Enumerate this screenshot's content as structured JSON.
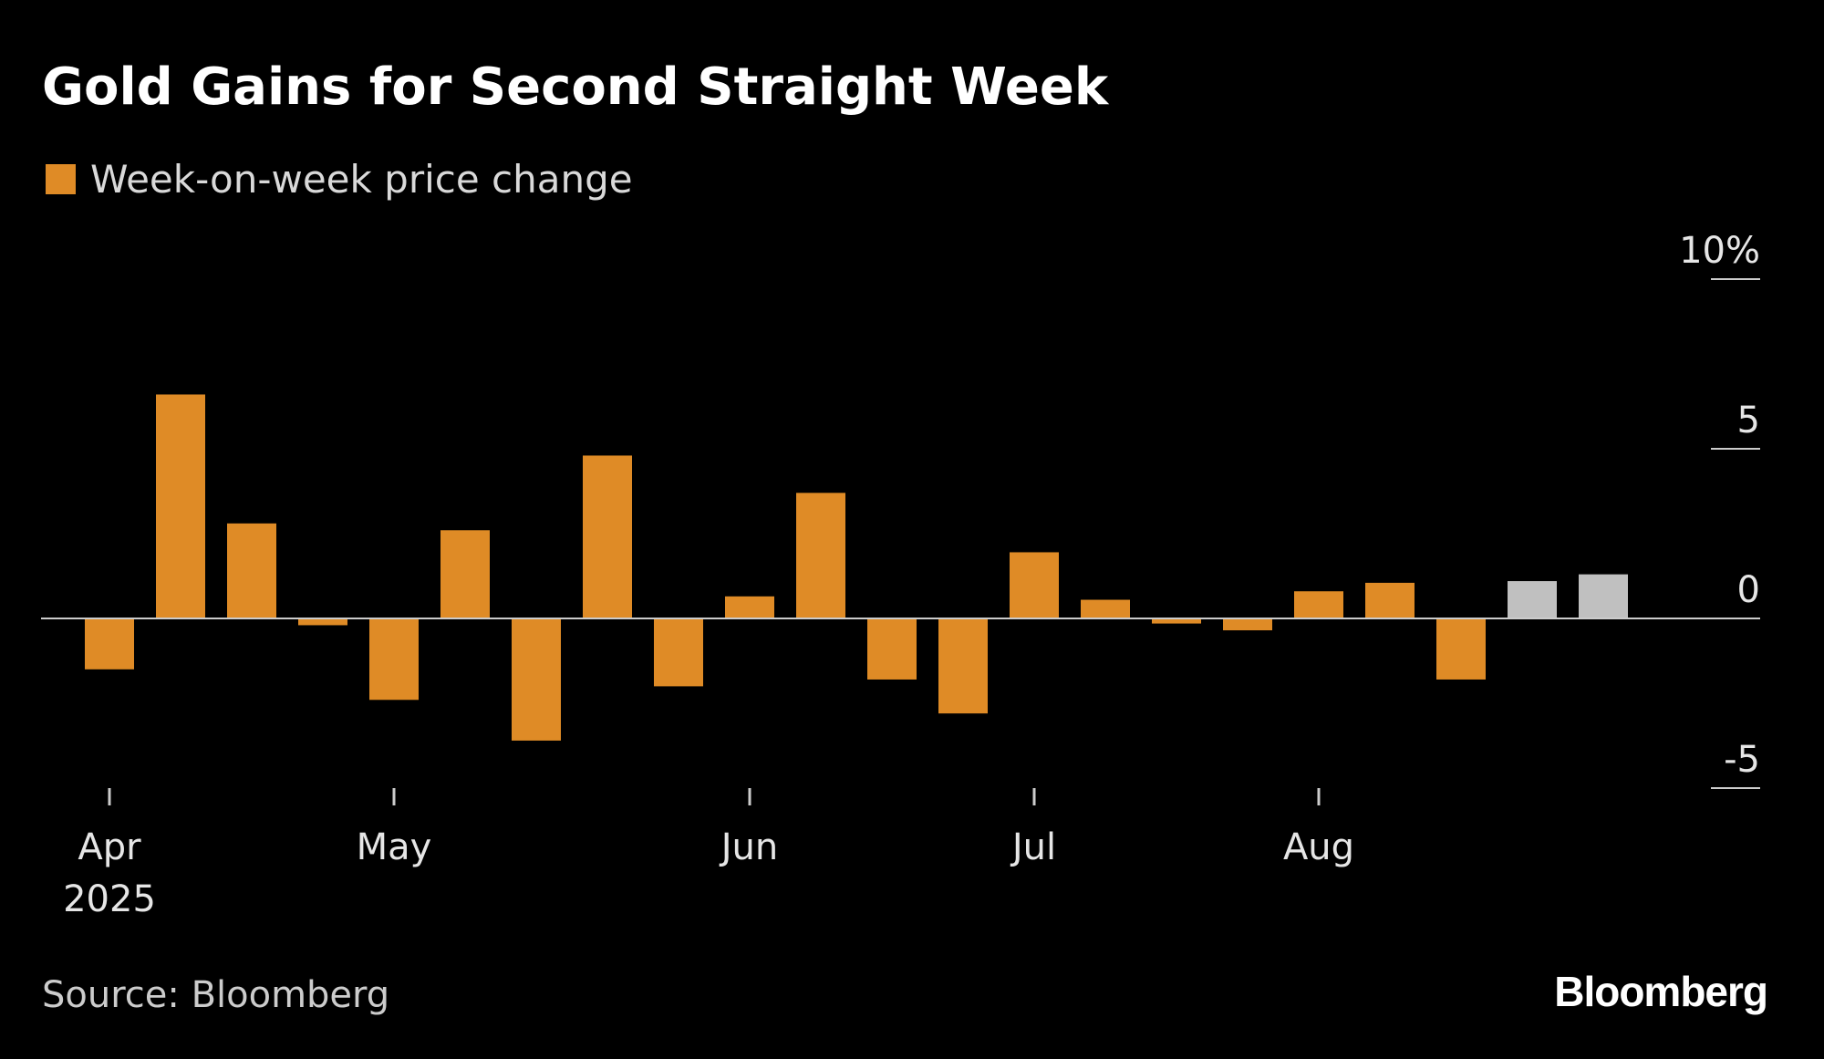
{
  "chart_data": {
    "type": "bar",
    "title": "Gold Gains for Second Straight Week",
    "legend": {
      "label": "Week-on-week price change",
      "placement": "top-left"
    },
    "source": "Source: Bloomberg",
    "brand": "Bloomberg",
    "ylim": [
      -5,
      10
    ],
    "y_ticks": [
      {
        "value": 10,
        "label": "10%"
      },
      {
        "value": 5,
        "label": "5"
      },
      {
        "value": 0,
        "label": "0"
      },
      {
        "value": -5,
        "label": "-5"
      }
    ],
    "x_ticks": [
      {
        "position": 0,
        "label": "Apr",
        "sublabel": "2025"
      },
      {
        "position": 4,
        "label": "May",
        "sublabel": ""
      },
      {
        "position": 9,
        "label": "Jun",
        "sublabel": ""
      },
      {
        "position": 13,
        "label": "Jul",
        "sublabel": ""
      },
      {
        "position": 17,
        "label": "Aug",
        "sublabel": ""
      }
    ],
    "values": [
      -1.5,
      6.6,
      2.8,
      -0.2,
      -2.4,
      2.6,
      -3.6,
      4.8,
      -2.0,
      0.65,
      3.7,
      -1.8,
      -2.8,
      1.95,
      0.55,
      -0.15,
      -0.35,
      0.8,
      1.05,
      -1.8,
      1.1,
      1.3
    ],
    "highlight_from_index": 20,
    "colors": {
      "bar": "#df8b26",
      "highlight": "#c0c0c0",
      "axis": "#cccccc",
      "background": "#000000"
    }
  }
}
